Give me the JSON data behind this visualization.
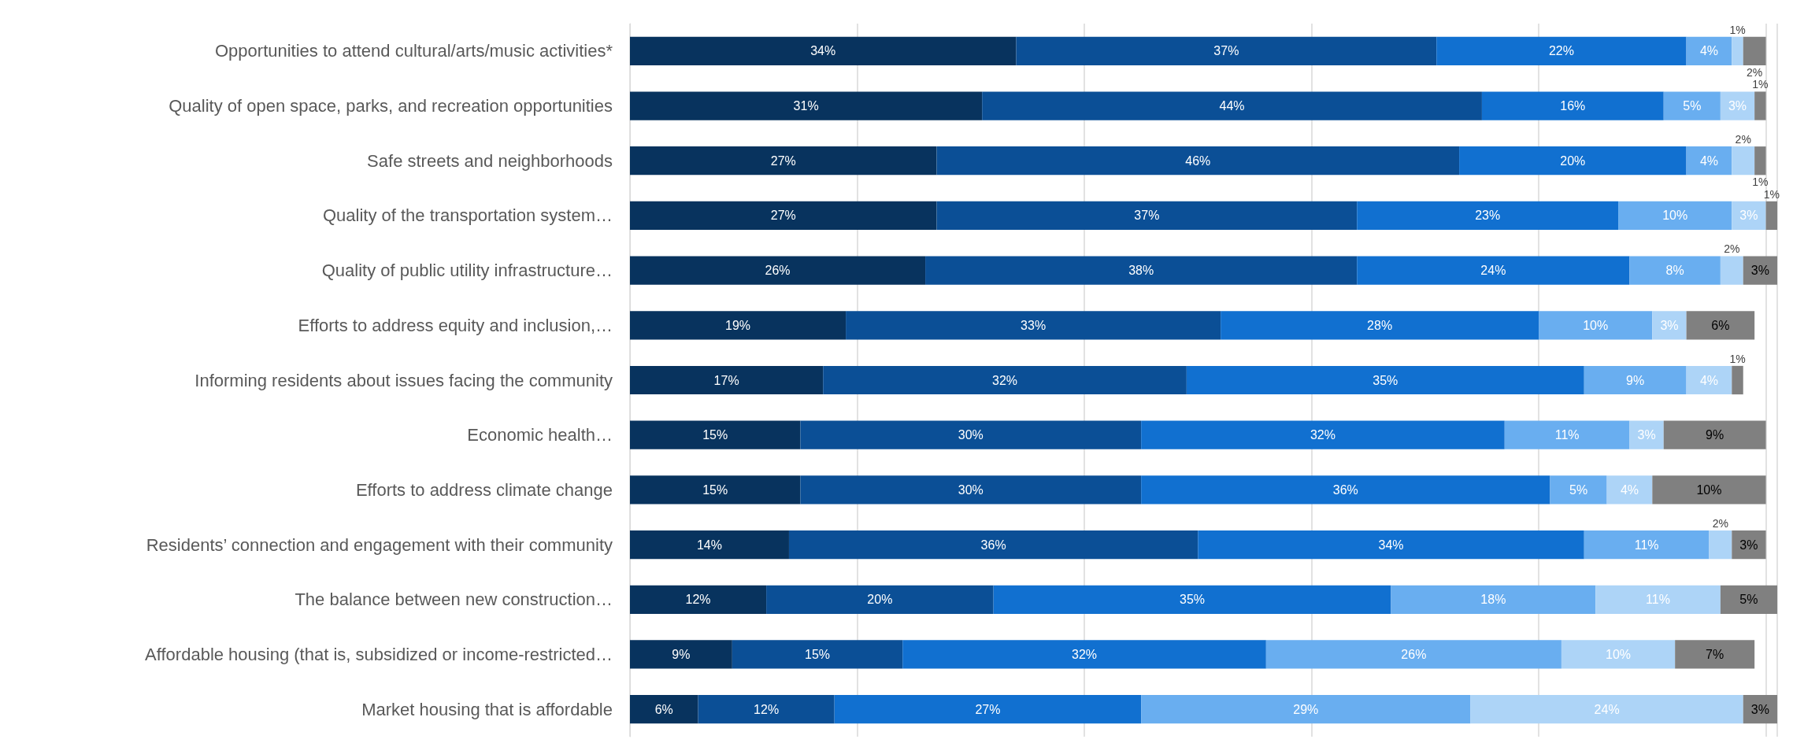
{
  "chart_data": {
    "type": "bar",
    "orientation": "horizontal",
    "stacked": true,
    "grid": "x",
    "tick_labels": "y",
    "categories": [
      "Opportunities to attend cultural/arts/music activities*",
      "Quality of open space, parks, and recreation opportunities",
      "Safe streets and neighborhoods",
      "Quality of the transportation system…",
      "Quality of public utility infrastructure…",
      "Efforts to address equity and inclusion,…",
      "Informing residents about issues facing the community",
      "Economic health…",
      "Efforts to address climate change",
      "Residents’ connection and engagement with their community",
      "The balance between new construction…",
      "Affordable housing (that is, subsidized or income-restricted…",
      "Market housing that is affordable"
    ],
    "series": [
      {
        "color": "#08335e",
        "values": [
          34,
          31,
          27,
          27,
          26,
          19,
          17,
          15,
          15,
          14,
          12,
          9,
          6
        ],
        "value_labels": [
          "34%",
          "31%",
          "27%",
          "27%",
          "26%",
          "19%",
          "17%",
          "15%",
          "15%",
          "14%",
          "12%",
          "9%",
          "6%"
        ]
      },
      {
        "color": "#0b4f96",
        "values": [
          37,
          44,
          46,
          37,
          38,
          33,
          32,
          30,
          30,
          36,
          20,
          15,
          12
        ],
        "value_labels": [
          "37%",
          "44%",
          "46%",
          "37%",
          "38%",
          "33%",
          "32%",
          "30%",
          "30%",
          "36%",
          "20%",
          "15%",
          "12%"
        ]
      },
      {
        "color": "#1170d0",
        "values": [
          22,
          16,
          20,
          23,
          24,
          28,
          35,
          32,
          36,
          34,
          35,
          32,
          27
        ],
        "value_labels": [
          "22%",
          "16%",
          "20%",
          "23%",
          "24%",
          "28%",
          "35%",
          "32%",
          "36%",
          "34%",
          "35%",
          "32%",
          "27%"
        ]
      },
      {
        "color": "#69aef0",
        "values": [
          4,
          5,
          4,
          10,
          8,
          10,
          9,
          11,
          5,
          11,
          18,
          26,
          29
        ],
        "value_labels": [
          "4%",
          "5%",
          "4%",
          "10%",
          "8%",
          "10%",
          "9%",
          "11%",
          "5%",
          "11%",
          "18%",
          "26%",
          "29%"
        ]
      },
      {
        "color": "#add4f7",
        "values": [
          1,
          3,
          2,
          3,
          2,
          3,
          4,
          3,
          4,
          2,
          11,
          10,
          24
        ],
        "value_labels": [
          "1%",
          "3%",
          "2%",
          "3%",
          "2%",
          "3%",
          "4%",
          "3%",
          "4%",
          "2%",
          "11%",
          "10%",
          "24%"
        ]
      },
      {
        "color": "#808080",
        "values": [
          2,
          1,
          1,
          1,
          3,
          6,
          1,
          9,
          10,
          3,
          5,
          7,
          3
        ],
        "value_labels": [
          "2%",
          "1%",
          "1%",
          "1%",
          "3%",
          "6%",
          "1%",
          "9%",
          "10%",
          "3%",
          "5%",
          "7%",
          "3%"
        ]
      }
    ]
  }
}
